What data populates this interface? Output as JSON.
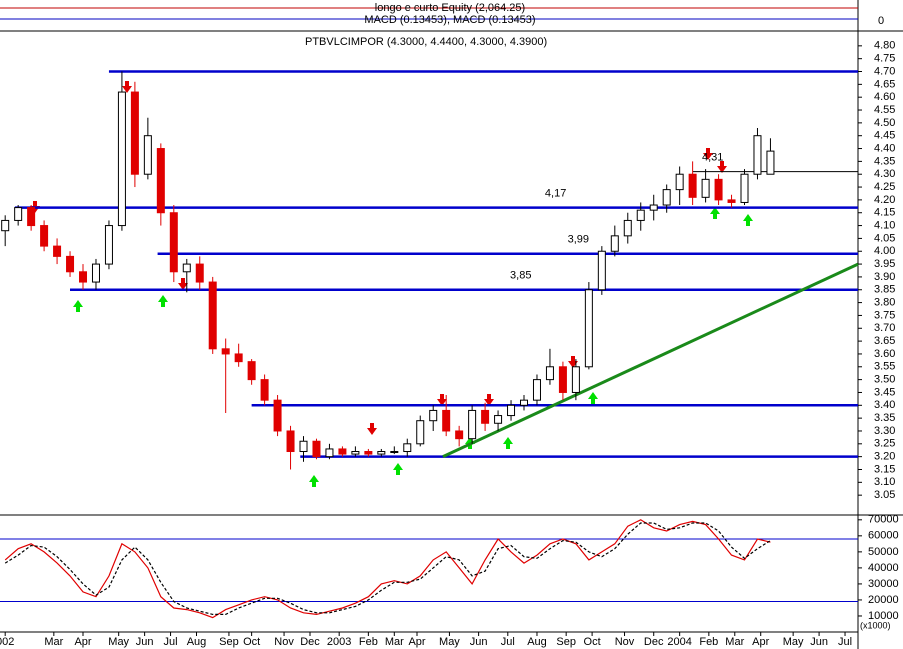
{
  "chart_data": [
    {
      "type": "indicator",
      "title": "longo e curto Equity (2,064.25)",
      "subtitle": "MACD (0.13453), MACD (0.13453)",
      "yticks": [
        0
      ]
    },
    {
      "type": "candlestick",
      "title": "PTBVLCIMPOR (4.3000, 4.4400, 4.3000, 4.3900)",
      "xlim": [
        -0.8,
        131.5
      ],
      "ylim": [
        3.0,
        4.85
      ],
      "yticks": [
        {
          "value": 3.05,
          "label": "3.05"
        },
        {
          "value": 3.1,
          "label": "3.10"
        },
        {
          "value": 3.15,
          "label": "3.15"
        },
        {
          "value": 3.2,
          "label": "3.20"
        },
        {
          "value": 3.25,
          "label": "3.25"
        },
        {
          "value": 3.3,
          "label": "3.30"
        },
        {
          "value": 3.35,
          "label": "3.35"
        },
        {
          "value": 3.4,
          "label": "3.40"
        },
        {
          "value": 3.45,
          "label": "3.45"
        },
        {
          "value": 3.5,
          "label": "3.50"
        },
        {
          "value": 3.55,
          "label": "3.55"
        },
        {
          "value": 3.6,
          "label": "3.60"
        },
        {
          "value": 3.65,
          "label": "3.65"
        },
        {
          "value": 3.7,
          "label": "3.70"
        },
        {
          "value": 3.75,
          "label": "3.75"
        },
        {
          "value": 3.8,
          "label": "3.80"
        },
        {
          "value": 3.85,
          "label": "3.85"
        },
        {
          "value": 3.9,
          "label": "3.90"
        },
        {
          "value": 3.95,
          "label": "3.95"
        },
        {
          "value": 4.0,
          "label": "4.00"
        },
        {
          "value": 4.05,
          "label": "4.05"
        },
        {
          "value": 4.1,
          "label": "4.10"
        },
        {
          "value": 4.15,
          "label": "4.15"
        },
        {
          "value": 4.2,
          "label": "4.20"
        },
        {
          "value": 4.25,
          "label": "4.25"
        },
        {
          "value": 4.3,
          "label": "4.30"
        },
        {
          "value": 4.35,
          "label": "4.35"
        },
        {
          "value": 4.4,
          "label": "4.40"
        },
        {
          "value": 4.45,
          "label": "4.45"
        },
        {
          "value": 4.5,
          "label": "4.50"
        },
        {
          "value": 4.55,
          "label": "4.55"
        },
        {
          "value": 4.6,
          "label": "4.60"
        },
        {
          "value": 4.65,
          "label": "4.65"
        },
        {
          "value": 4.7,
          "label": "4.70"
        },
        {
          "value": 4.75,
          "label": "4.75"
        },
        {
          "value": 4.8,
          "label": "4.80"
        }
      ],
      "x": [
        0,
        2,
        4,
        6,
        8,
        10,
        12,
        14,
        16,
        18,
        20,
        22,
        24,
        26,
        28,
        30,
        32,
        34,
        36,
        38,
        40,
        42,
        44,
        46,
        48,
        50,
        52,
        54,
        56,
        58,
        60,
        62,
        64,
        66,
        68,
        70,
        72,
        74,
        76,
        78,
        80,
        82,
        84,
        86,
        88,
        90,
        92,
        94,
        96,
        98,
        100,
        102,
        104,
        106,
        108,
        110,
        112,
        114,
        116,
        118
      ],
      "open": [
        4.08,
        4.12,
        4.17,
        4.1,
        4.02,
        3.98,
        3.92,
        3.88,
        3.95,
        4.1,
        4.62,
        4.3,
        4.4,
        4.15,
        3.92,
        3.95,
        3.88,
        3.62,
        3.6,
        3.57,
        3.5,
        3.42,
        3.3,
        3.22,
        3.26,
        3.2,
        3.23,
        3.21,
        3.22,
        3.21,
        3.22,
        3.22,
        3.25,
        3.34,
        3.38,
        3.3,
        3.27,
        3.38,
        3.33,
        3.36,
        3.4,
        3.42,
        3.5,
        3.55,
        3.45,
        3.55,
        3.85,
        4.0,
        4.06,
        4.12,
        4.16,
        4.18,
        4.24,
        4.3,
        4.21,
        4.28,
        4.2,
        4.19,
        4.3,
        4.3
      ],
      "high": [
        4.14,
        4.18,
        4.18,
        4.12,
        4.05,
        4.0,
        3.95,
        3.97,
        4.12,
        4.7,
        4.66,
        4.52,
        4.42,
        4.18,
        3.97,
        3.98,
        3.9,
        3.66,
        3.64,
        3.58,
        3.52,
        3.44,
        3.32,
        3.28,
        3.27,
        3.25,
        3.24,
        3.24,
        3.23,
        3.23,
        3.24,
        3.27,
        3.36,
        3.4,
        3.44,
        3.32,
        3.4,
        3.41,
        3.38,
        3.42,
        3.44,
        3.52,
        3.62,
        3.57,
        3.58,
        3.88,
        4.02,
        4.1,
        4.15,
        4.19,
        4.22,
        4.26,
        4.33,
        4.35,
        4.32,
        4.3,
        4.22,
        4.32,
        4.48,
        4.44
      ],
      "low": [
        4.02,
        4.1,
        4.08,
        4.0,
        3.95,
        3.9,
        3.85,
        3.85,
        3.93,
        4.08,
        4.25,
        4.28,
        4.1,
        3.88,
        3.84,
        3.85,
        3.6,
        3.37,
        3.55,
        3.48,
        3.4,
        3.28,
        3.15,
        3.18,
        3.19,
        3.19,
        3.2,
        3.2,
        3.2,
        3.2,
        3.21,
        3.2,
        3.24,
        3.3,
        3.28,
        3.24,
        3.25,
        3.3,
        3.3,
        3.34,
        3.38,
        3.4,
        3.48,
        3.42,
        3.42,
        3.54,
        3.83,
        3.98,
        4.03,
        4.08,
        4.12,
        4.15,
        4.18,
        4.18,
        4.19,
        4.18,
        4.17,
        4.18,
        4.28,
        4.3
      ],
      "close": [
        4.12,
        4.17,
        4.1,
        4.02,
        3.98,
        3.92,
        3.88,
        3.95,
        4.1,
        4.62,
        4.3,
        4.45,
        4.15,
        3.92,
        3.95,
        3.88,
        3.62,
        3.6,
        3.57,
        3.5,
        3.42,
        3.3,
        3.22,
        3.26,
        3.2,
        3.23,
        3.21,
        3.22,
        3.21,
        3.22,
        3.22,
        3.25,
        3.34,
        3.38,
        3.3,
        3.27,
        3.38,
        3.33,
        3.36,
        3.4,
        3.42,
        3.5,
        3.55,
        3.45,
        3.55,
        3.85,
        4.0,
        4.06,
        4.12,
        4.16,
        4.18,
        4.24,
        4.3,
        4.21,
        4.28,
        4.2,
        4.19,
        4.3,
        4.45,
        4.39
      ],
      "levels": [
        {
          "value": 4.7,
          "start": 16
        },
        {
          "value": 4.17,
          "start": 1.5,
          "label": "4,17"
        },
        {
          "value": 3.99,
          "start": 23.5,
          "label": "3,99"
        },
        {
          "value": 3.85,
          "start": 10
        },
        {
          "value": 3.85,
          "start": 10,
          "label": "3,85"
        },
        {
          "value": 3.4,
          "start": 38
        },
        {
          "value": 3.2,
          "start": 45.5
        },
        {
          "value": 4.31,
          "start": 106,
          "label": "4,31"
        }
      ],
      "trendline": {
        "x": [
          67.5,
          131.5
        ],
        "y": [
          3.2,
          3.95
        ]
      }
    },
    {
      "type": "oscillator",
      "xlim": [
        -0.8,
        131.5
      ],
      "ylim": [
        0,
        73000
      ],
      "yticks": [
        10000,
        20000,
        30000,
        40000,
        50000,
        60000,
        70000
      ],
      "unit_label": "(x1000)",
      "levels": [
        58000,
        19000
      ],
      "xticks": [
        {
          "value": 0,
          "label": "002"
        },
        {
          "value": 7.5,
          "label": "Mar"
        },
        {
          "value": 12,
          "label": "Apr"
        },
        {
          "value": 17.5,
          "label": "May"
        },
        {
          "value": 21.5,
          "label": "Jun"
        },
        {
          "value": 25.5,
          "label": "Jul"
        },
        {
          "value": 29.5,
          "label": "Aug"
        },
        {
          "value": 34.5,
          "label": "Sep"
        },
        {
          "value": 38,
          "label": "Oct"
        },
        {
          "value": 43,
          "label": "Nov"
        },
        {
          "value": 47,
          "label": "Dec"
        },
        {
          "value": 51.5,
          "label": "2003"
        },
        {
          "value": 56,
          "label": "Feb"
        },
        {
          "value": 60,
          "label": "Mar"
        },
        {
          "value": 63.5,
          "label": "Apr"
        },
        {
          "value": 68.5,
          "label": "May"
        },
        {
          "value": 73,
          "label": "Jun"
        },
        {
          "value": 77.5,
          "label": "Jul"
        },
        {
          "value": 82,
          "label": "Aug"
        },
        {
          "value": 86.5,
          "label": "Sep"
        },
        {
          "value": 90.5,
          "label": "Oct"
        },
        {
          "value": 95.5,
          "label": "Nov"
        },
        {
          "value": 100,
          "label": "Dec"
        },
        {
          "value": 104,
          "label": "2004"
        },
        {
          "value": 108.5,
          "label": "Feb"
        },
        {
          "value": 112.5,
          "label": "Mar"
        },
        {
          "value": 116.5,
          "label": "Apr"
        },
        {
          "value": 121.5,
          "label": "May"
        },
        {
          "value": 125.5,
          "label": "Jun"
        },
        {
          "value": 129.5,
          "label": "Jul"
        }
      ],
      "x": [
        0,
        2,
        4,
        6,
        8,
        10,
        12,
        14,
        16,
        18,
        20,
        22,
        24,
        26,
        28,
        30,
        32,
        34,
        36,
        38,
        40,
        42,
        44,
        46,
        48,
        50,
        52,
        54,
        56,
        58,
        60,
        62,
        64,
        66,
        68,
        70,
        72,
        74,
        76,
        78,
        80,
        82,
        84,
        86,
        88,
        90,
        92,
        94,
        96,
        98,
        100,
        102,
        104,
        106,
        108,
        110,
        112,
        114,
        116,
        118
      ],
      "series": [
        {
          "color": "#e00000",
          "style": "solid",
          "values": [
            45000,
            52000,
            55000,
            50000,
            43000,
            35000,
            25000,
            22000,
            35000,
            55000,
            50000,
            40000,
            22000,
            15000,
            14000,
            12000,
            9000,
            14000,
            17000,
            20000,
            22000,
            20000,
            15000,
            12000,
            11000,
            13000,
            15000,
            18000,
            22000,
            30000,
            32000,
            30000,
            35000,
            45000,
            50000,
            40000,
            30000,
            45000,
            58000,
            50000,
            43000,
            48000,
            55000,
            58000,
            55000,
            45000,
            50000,
            55000,
            66000,
            70000,
            65000,
            63000,
            67000,
            69000,
            67000,
            58000,
            48000,
            45000,
            58000,
            56000
          ]
        },
        {
          "color": "#000000",
          "style": "dashed",
          "values": [
            43000,
            48000,
            54000,
            53000,
            47000,
            39000,
            30000,
            23000,
            28000,
            45000,
            53000,
            45000,
            31000,
            19000,
            15000,
            13000,
            11000,
            11000,
            15000,
            18000,
            21000,
            21000,
            18000,
            14000,
            12000,
            12000,
            14000,
            16000,
            20000,
            26000,
            31000,
            31000,
            33000,
            40000,
            47000,
            45000,
            35000,
            38000,
            52000,
            54000,
            47000,
            46000,
            52000,
            57000,
            56000,
            50000,
            47000,
            52000,
            61000,
            68000,
            68000,
            64000,
            65000,
            68000,
            68000,
            63000,
            53000,
            46000,
            52000,
            57000
          ]
        }
      ]
    }
  ]
}
